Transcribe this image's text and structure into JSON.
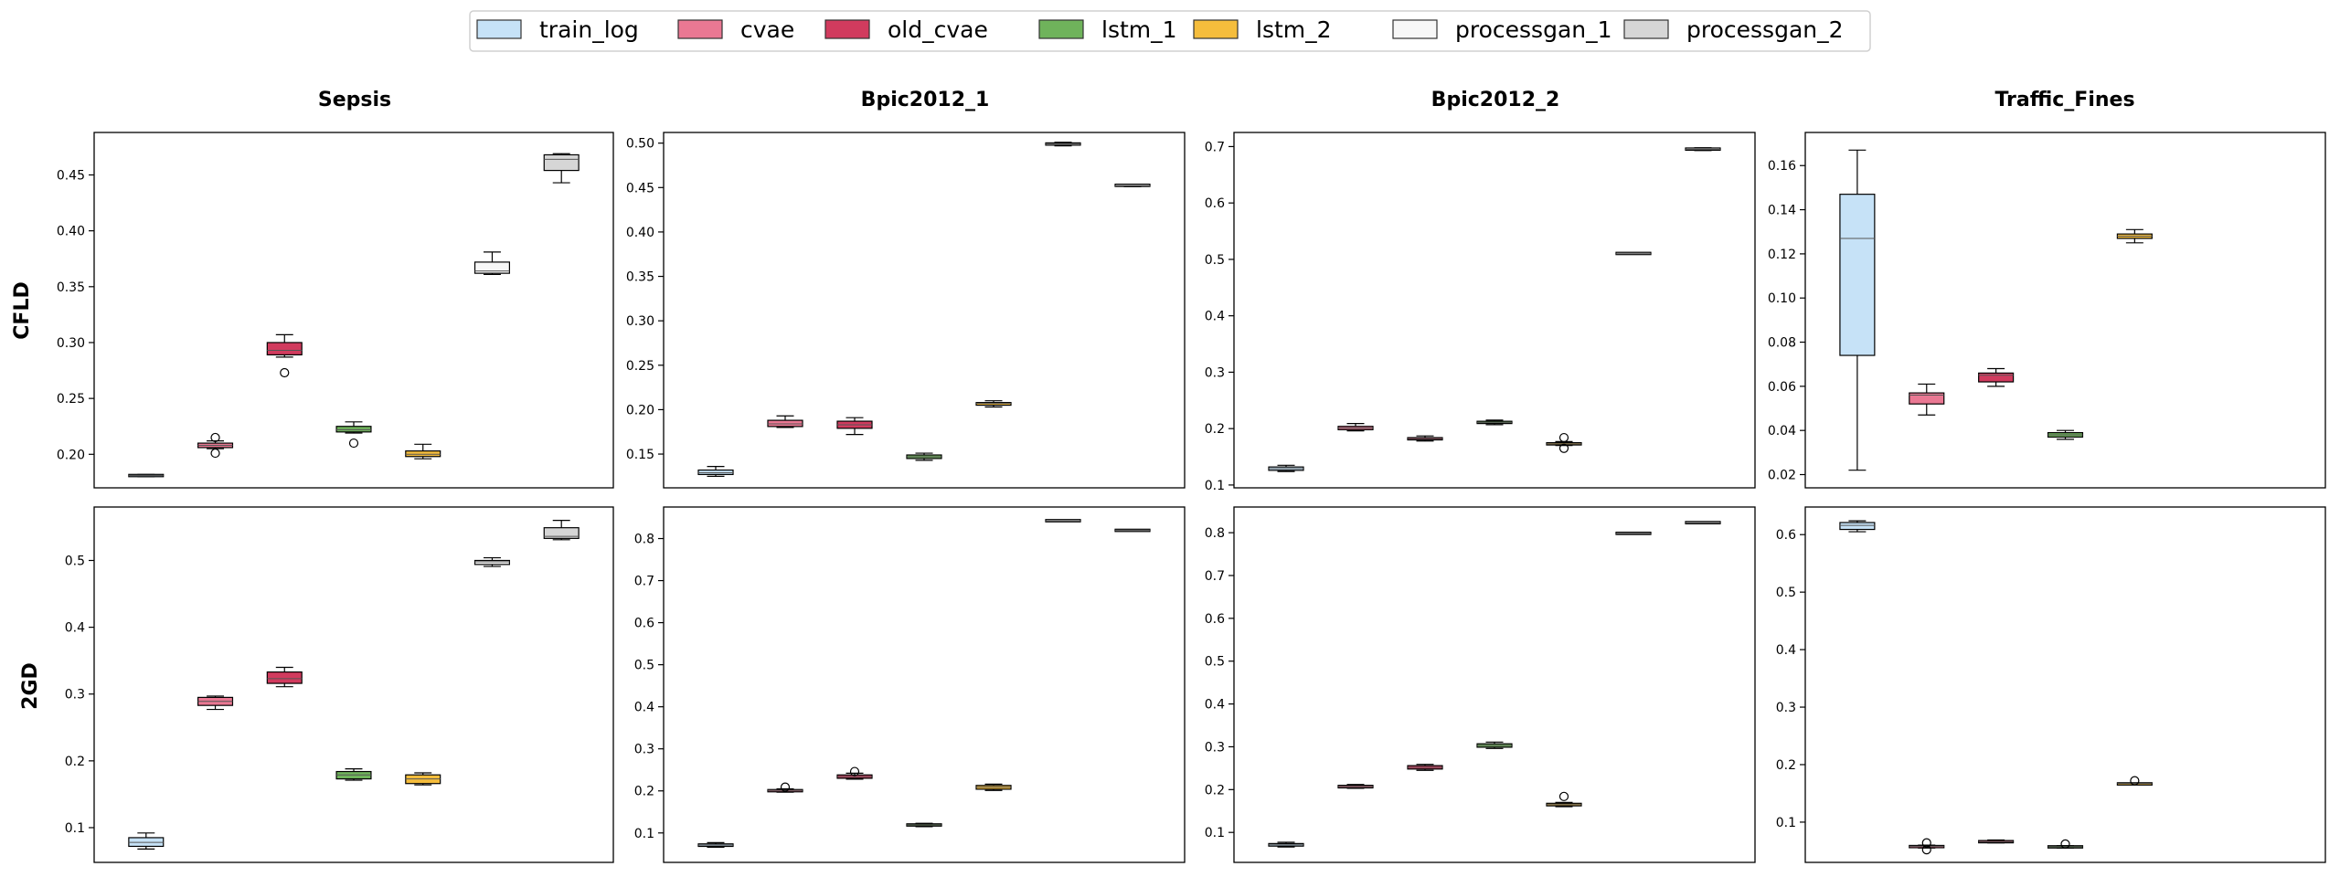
{
  "legend": {
    "items": [
      {
        "label": "train_log",
        "color": "#c6e2f7"
      },
      {
        "label": "cvae",
        "color": "#ea7893"
      },
      {
        "label": "old_cvae",
        "color": "#d13b5e"
      },
      {
        "label": "lstm_1",
        "color": "#6fb35b"
      },
      {
        "label": "lstm_2",
        "color": "#f5bd3c"
      },
      {
        "label": "processgan_1",
        "color": "#f7f7f7"
      },
      {
        "label": "processgan_2",
        "color": "#d6d6d6"
      }
    ]
  },
  "columns": [
    "Sepsis",
    "Bpic2012_1",
    "Bpic2012_2",
    "Traffic_Fines"
  ],
  "rows": [
    "CFLD",
    "2GD"
  ],
  "chart_data": [
    {
      "type": "box",
      "row": "CFLD",
      "column": "Sepsis",
      "ylim": [
        0.17,
        0.488
      ],
      "yticks": [
        0.2,
        0.25,
        0.3,
        0.35,
        0.4,
        0.45
      ],
      "boxes": [
        {
          "series": "train_log",
          "whislo": 0.18,
          "q1": 0.1805,
          "med": 0.181,
          "q3": 0.1815,
          "whishi": 0.182,
          "fliers": []
        },
        {
          "series": "cvae",
          "whislo": 0.205,
          "q1": 0.206,
          "med": 0.208,
          "q3": 0.21,
          "whishi": 0.212,
          "fliers": [
            0.215,
            0.201
          ]
        },
        {
          "series": "old_cvae",
          "whislo": 0.287,
          "q1": 0.289,
          "med": 0.293,
          "q3": 0.3,
          "whishi": 0.307,
          "fliers": [
            0.273
          ]
        },
        {
          "series": "lstm_1",
          "whislo": 0.219,
          "q1": 0.22,
          "med": 0.222,
          "q3": 0.225,
          "whishi": 0.229,
          "fliers": [
            0.21
          ]
        },
        {
          "series": "lstm_2",
          "whislo": 0.196,
          "q1": 0.198,
          "med": 0.2,
          "q3": 0.203,
          "whishi": 0.209,
          "fliers": []
        },
        {
          "series": "processgan_1",
          "whislo": 0.361,
          "q1": 0.362,
          "med": 0.364,
          "q3": 0.372,
          "whishi": 0.381,
          "fliers": []
        },
        {
          "series": "processgan_2",
          "whislo": 0.443,
          "q1": 0.454,
          "med": 0.464,
          "q3": 0.468,
          "whishi": 0.469,
          "fliers": []
        }
      ]
    },
    {
      "type": "box",
      "row": "CFLD",
      "column": "Bpic2012_1",
      "ylim": [
        0.112,
        0.512
      ],
      "yticks": [
        0.15,
        0.2,
        0.25,
        0.3,
        0.35,
        0.4,
        0.45,
        0.5
      ],
      "boxes": [
        {
          "series": "train_log",
          "whislo": 0.125,
          "q1": 0.127,
          "med": 0.129,
          "q3": 0.132,
          "whishi": 0.136,
          "fliers": []
        },
        {
          "series": "cvae",
          "whislo": 0.18,
          "q1": 0.181,
          "med": 0.184,
          "q3": 0.188,
          "whishi": 0.193,
          "fliers": []
        },
        {
          "series": "old_cvae",
          "whislo": 0.172,
          "q1": 0.179,
          "med": 0.183,
          "q3": 0.187,
          "whishi": 0.191,
          "fliers": []
        },
        {
          "series": "lstm_1",
          "whislo": 0.143,
          "q1": 0.145,
          "med": 0.147,
          "q3": 0.149,
          "whishi": 0.151,
          "fliers": []
        },
        {
          "series": "lstm_2",
          "whislo": 0.203,
          "q1": 0.205,
          "med": 0.207,
          "q3": 0.208,
          "whishi": 0.21,
          "fliers": []
        },
        {
          "series": "processgan_1",
          "whislo": 0.497,
          "q1": 0.498,
          "med": 0.499,
          "q3": 0.5,
          "whishi": 0.501,
          "fliers": []
        },
        {
          "series": "processgan_2",
          "whislo": 0.451,
          "q1": 0.452,
          "med": 0.452,
          "q3": 0.453,
          "whishi": 0.453,
          "fliers": []
        }
      ]
    },
    {
      "type": "box",
      "row": "CFLD",
      "column": "Bpic2012_2",
      "ylim": [
        0.095,
        0.725
      ],
      "yticks": [
        0.1,
        0.2,
        0.3,
        0.4,
        0.5,
        0.6,
        0.7
      ],
      "boxes": [
        {
          "series": "train_log",
          "whislo": 0.124,
          "q1": 0.126,
          "med": 0.129,
          "q3": 0.132,
          "whishi": 0.135,
          "fliers": []
        },
        {
          "series": "cvae",
          "whislo": 0.196,
          "q1": 0.198,
          "med": 0.201,
          "q3": 0.204,
          "whishi": 0.209,
          "fliers": []
        },
        {
          "series": "old_cvae",
          "whislo": 0.178,
          "q1": 0.18,
          "med": 0.182,
          "q3": 0.184,
          "whishi": 0.187,
          "fliers": []
        },
        {
          "series": "lstm_1",
          "whislo": 0.207,
          "q1": 0.209,
          "med": 0.211,
          "q3": 0.213,
          "whishi": 0.215,
          "fliers": []
        },
        {
          "series": "lstm_2",
          "whislo": 0.17,
          "q1": 0.171,
          "med": 0.173,
          "q3": 0.175,
          "whishi": 0.177,
          "fliers": [
            0.184,
            0.165
          ]
        },
        {
          "series": "processgan_1",
          "whislo": 0.509,
          "q1": 0.51,
          "med": 0.51,
          "q3": 0.511,
          "whishi": 0.511,
          "fliers": []
        },
        {
          "series": "processgan_2",
          "whislo": 0.693,
          "q1": 0.694,
          "med": 0.695,
          "q3": 0.697,
          "whishi": 0.698,
          "fliers": []
        }
      ]
    },
    {
      "type": "box",
      "row": "CFLD",
      "column": "Traffic_Fines",
      "ylim": [
        0.014,
        0.175
      ],
      "yticks": [
        0.02,
        0.04,
        0.06,
        0.08,
        0.1,
        0.12,
        0.14,
        0.16
      ],
      "boxes": [
        {
          "series": "train_log",
          "whislo": 0.022,
          "q1": 0.074,
          "med": 0.127,
          "q3": 0.147,
          "whishi": 0.167,
          "fliers": []
        },
        {
          "series": "cvae",
          "whislo": 0.047,
          "q1": 0.052,
          "med": 0.056,
          "q3": 0.057,
          "whishi": 0.061,
          "fliers": []
        },
        {
          "series": "old_cvae",
          "whislo": 0.06,
          "q1": 0.062,
          "med": 0.065,
          "q3": 0.066,
          "whishi": 0.068,
          "fliers": []
        },
        {
          "series": "lstm_1",
          "whislo": 0.036,
          "q1": 0.037,
          "med": 0.038,
          "q3": 0.039,
          "whishi": 0.04,
          "fliers": []
        },
        {
          "series": "lstm_2",
          "whislo": 0.125,
          "q1": 0.127,
          "med": 0.128,
          "q3": 0.129,
          "whishi": 0.131,
          "fliers": []
        },
        {
          "series": "processgan_1",
          "whislo": null,
          "q1": null,
          "med": null,
          "q3": null,
          "whishi": null,
          "fliers": []
        },
        {
          "series": "processgan_2",
          "whislo": null,
          "q1": null,
          "med": null,
          "q3": null,
          "whishi": null,
          "fliers": []
        }
      ]
    },
    {
      "type": "box",
      "row": "2GD",
      "column": "Sepsis",
      "ylim": [
        0.048,
        0.58
      ],
      "yticks": [
        0.1,
        0.2,
        0.3,
        0.4,
        0.5
      ],
      "boxes": [
        {
          "series": "train_log",
          "whislo": 0.068,
          "q1": 0.072,
          "med": 0.078,
          "q3": 0.085,
          "whishi": 0.092,
          "fliers": []
        },
        {
          "series": "cvae",
          "whislo": 0.277,
          "q1": 0.283,
          "med": 0.289,
          "q3": 0.295,
          "whishi": 0.297,
          "fliers": []
        },
        {
          "series": "old_cvae",
          "whislo": 0.311,
          "q1": 0.316,
          "med": 0.323,
          "q3": 0.333,
          "whishi": 0.34,
          "fliers": []
        },
        {
          "series": "lstm_1",
          "whislo": 0.171,
          "q1": 0.173,
          "med": 0.179,
          "q3": 0.184,
          "whishi": 0.188,
          "fliers": []
        },
        {
          "series": "lstm_2",
          "whislo": 0.164,
          "q1": 0.166,
          "med": 0.173,
          "q3": 0.179,
          "whishi": 0.182,
          "fliers": []
        },
        {
          "series": "processgan_1",
          "whislo": 0.491,
          "q1": 0.494,
          "med": 0.498,
          "q3": 0.5,
          "whishi": 0.504,
          "fliers": []
        },
        {
          "series": "processgan_2",
          "whislo": 0.531,
          "q1": 0.533,
          "med": 0.536,
          "q3": 0.549,
          "whishi": 0.56,
          "fliers": []
        }
      ]
    },
    {
      "type": "box",
      "row": "2GD",
      "column": "Bpic2012_1",
      "ylim": [
        0.03,
        0.875
      ],
      "yticks": [
        0.1,
        0.2,
        0.3,
        0.4,
        0.5,
        0.6,
        0.7,
        0.8
      ],
      "boxes": [
        {
          "series": "train_log",
          "whislo": 0.066,
          "q1": 0.068,
          "med": 0.071,
          "q3": 0.074,
          "whishi": 0.077,
          "fliers": []
        },
        {
          "series": "cvae",
          "whislo": 0.197,
          "q1": 0.198,
          "med": 0.201,
          "q3": 0.203,
          "whishi": 0.205,
          "fliers": [
            0.209
          ]
        },
        {
          "series": "old_cvae",
          "whislo": 0.228,
          "q1": 0.23,
          "med": 0.234,
          "q3": 0.238,
          "whishi": 0.242,
          "fliers": [
            0.246
          ]
        },
        {
          "series": "lstm_1",
          "whislo": 0.115,
          "q1": 0.117,
          "med": 0.119,
          "q3": 0.121,
          "whishi": 0.123,
          "fliers": []
        },
        {
          "series": "lstm_2",
          "whislo": 0.201,
          "q1": 0.204,
          "med": 0.209,
          "q3": 0.213,
          "whishi": 0.216,
          "fliers": []
        },
        {
          "series": "processgan_1",
          "whislo": 0.841,
          "q1": 0.842,
          "med": 0.842,
          "q3": 0.843,
          "whishi": 0.843,
          "fliers": []
        },
        {
          "series": "processgan_2",
          "whislo": 0.819,
          "q1": 0.819,
          "med": 0.82,
          "q3": 0.82,
          "whishi": 0.821,
          "fliers": []
        }
      ]
    },
    {
      "type": "box",
      "row": "2GD",
      "column": "Bpic2012_2",
      "ylim": [
        0.03,
        0.86
      ],
      "yticks": [
        0.1,
        0.2,
        0.3,
        0.4,
        0.5,
        0.6,
        0.7,
        0.8
      ],
      "boxes": [
        {
          "series": "train_log",
          "whislo": 0.066,
          "q1": 0.068,
          "med": 0.071,
          "q3": 0.074,
          "whishi": 0.077,
          "fliers": []
        },
        {
          "series": "cvae",
          "whislo": 0.203,
          "q1": 0.204,
          "med": 0.207,
          "q3": 0.21,
          "whishi": 0.212,
          "fliers": []
        },
        {
          "series": "old_cvae",
          "whislo": 0.245,
          "q1": 0.248,
          "med": 0.252,
          "q3": 0.256,
          "whishi": 0.259,
          "fliers": []
        },
        {
          "series": "lstm_1",
          "whislo": 0.296,
          "q1": 0.299,
          "med": 0.303,
          "q3": 0.307,
          "whishi": 0.311,
          "fliers": []
        },
        {
          "series": "lstm_2",
          "whislo": 0.16,
          "q1": 0.162,
          "med": 0.165,
          "q3": 0.168,
          "whishi": 0.17,
          "fliers": [
            0.184
          ]
        },
        {
          "series": "processgan_1",
          "whislo": 0.797,
          "q1": 0.798,
          "med": 0.798,
          "q3": 0.799,
          "whishi": 0.799,
          "fliers": []
        },
        {
          "series": "processgan_2",
          "whislo": 0.822,
          "q1": 0.823,
          "med": 0.823,
          "q3": 0.824,
          "whishi": 0.824,
          "fliers": []
        }
      ]
    },
    {
      "type": "box",
      "row": "2GD",
      "column": "Traffic_Fines",
      "ylim": [
        0.03,
        0.648
      ],
      "yticks": [
        0.1,
        0.2,
        0.3,
        0.4,
        0.5,
        0.6
      ],
      "boxes": [
        {
          "series": "train_log",
          "whislo": 0.605,
          "q1": 0.609,
          "med": 0.616,
          "q3": 0.621,
          "whishi": 0.624,
          "fliers": []
        },
        {
          "series": "cvae",
          "whislo": 0.055,
          "q1": 0.056,
          "med": 0.058,
          "q3": 0.059,
          "whishi": 0.06,
          "fliers": [
            0.064,
            0.052
          ]
        },
        {
          "series": "old_cvae",
          "whislo": 0.064,
          "q1": 0.065,
          "med": 0.066,
          "q3": 0.067,
          "whishi": 0.069,
          "fliers": []
        },
        {
          "series": "lstm_1",
          "whislo": 0.055,
          "q1": 0.056,
          "med": 0.057,
          "q3": 0.058,
          "whishi": 0.059,
          "fliers": [
            0.062
          ]
        },
        {
          "series": "lstm_2",
          "whislo": 0.166,
          "q1": 0.166,
          "med": 0.167,
          "q3": 0.167,
          "whishi": 0.168,
          "fliers": [
            0.172
          ]
        },
        {
          "series": "processgan_1",
          "whislo": null,
          "q1": null,
          "med": null,
          "q3": null,
          "whishi": null,
          "fliers": []
        },
        {
          "series": "processgan_2",
          "whislo": null,
          "q1": null,
          "med": null,
          "q3": null,
          "whishi": null,
          "fliers": []
        }
      ]
    }
  ]
}
